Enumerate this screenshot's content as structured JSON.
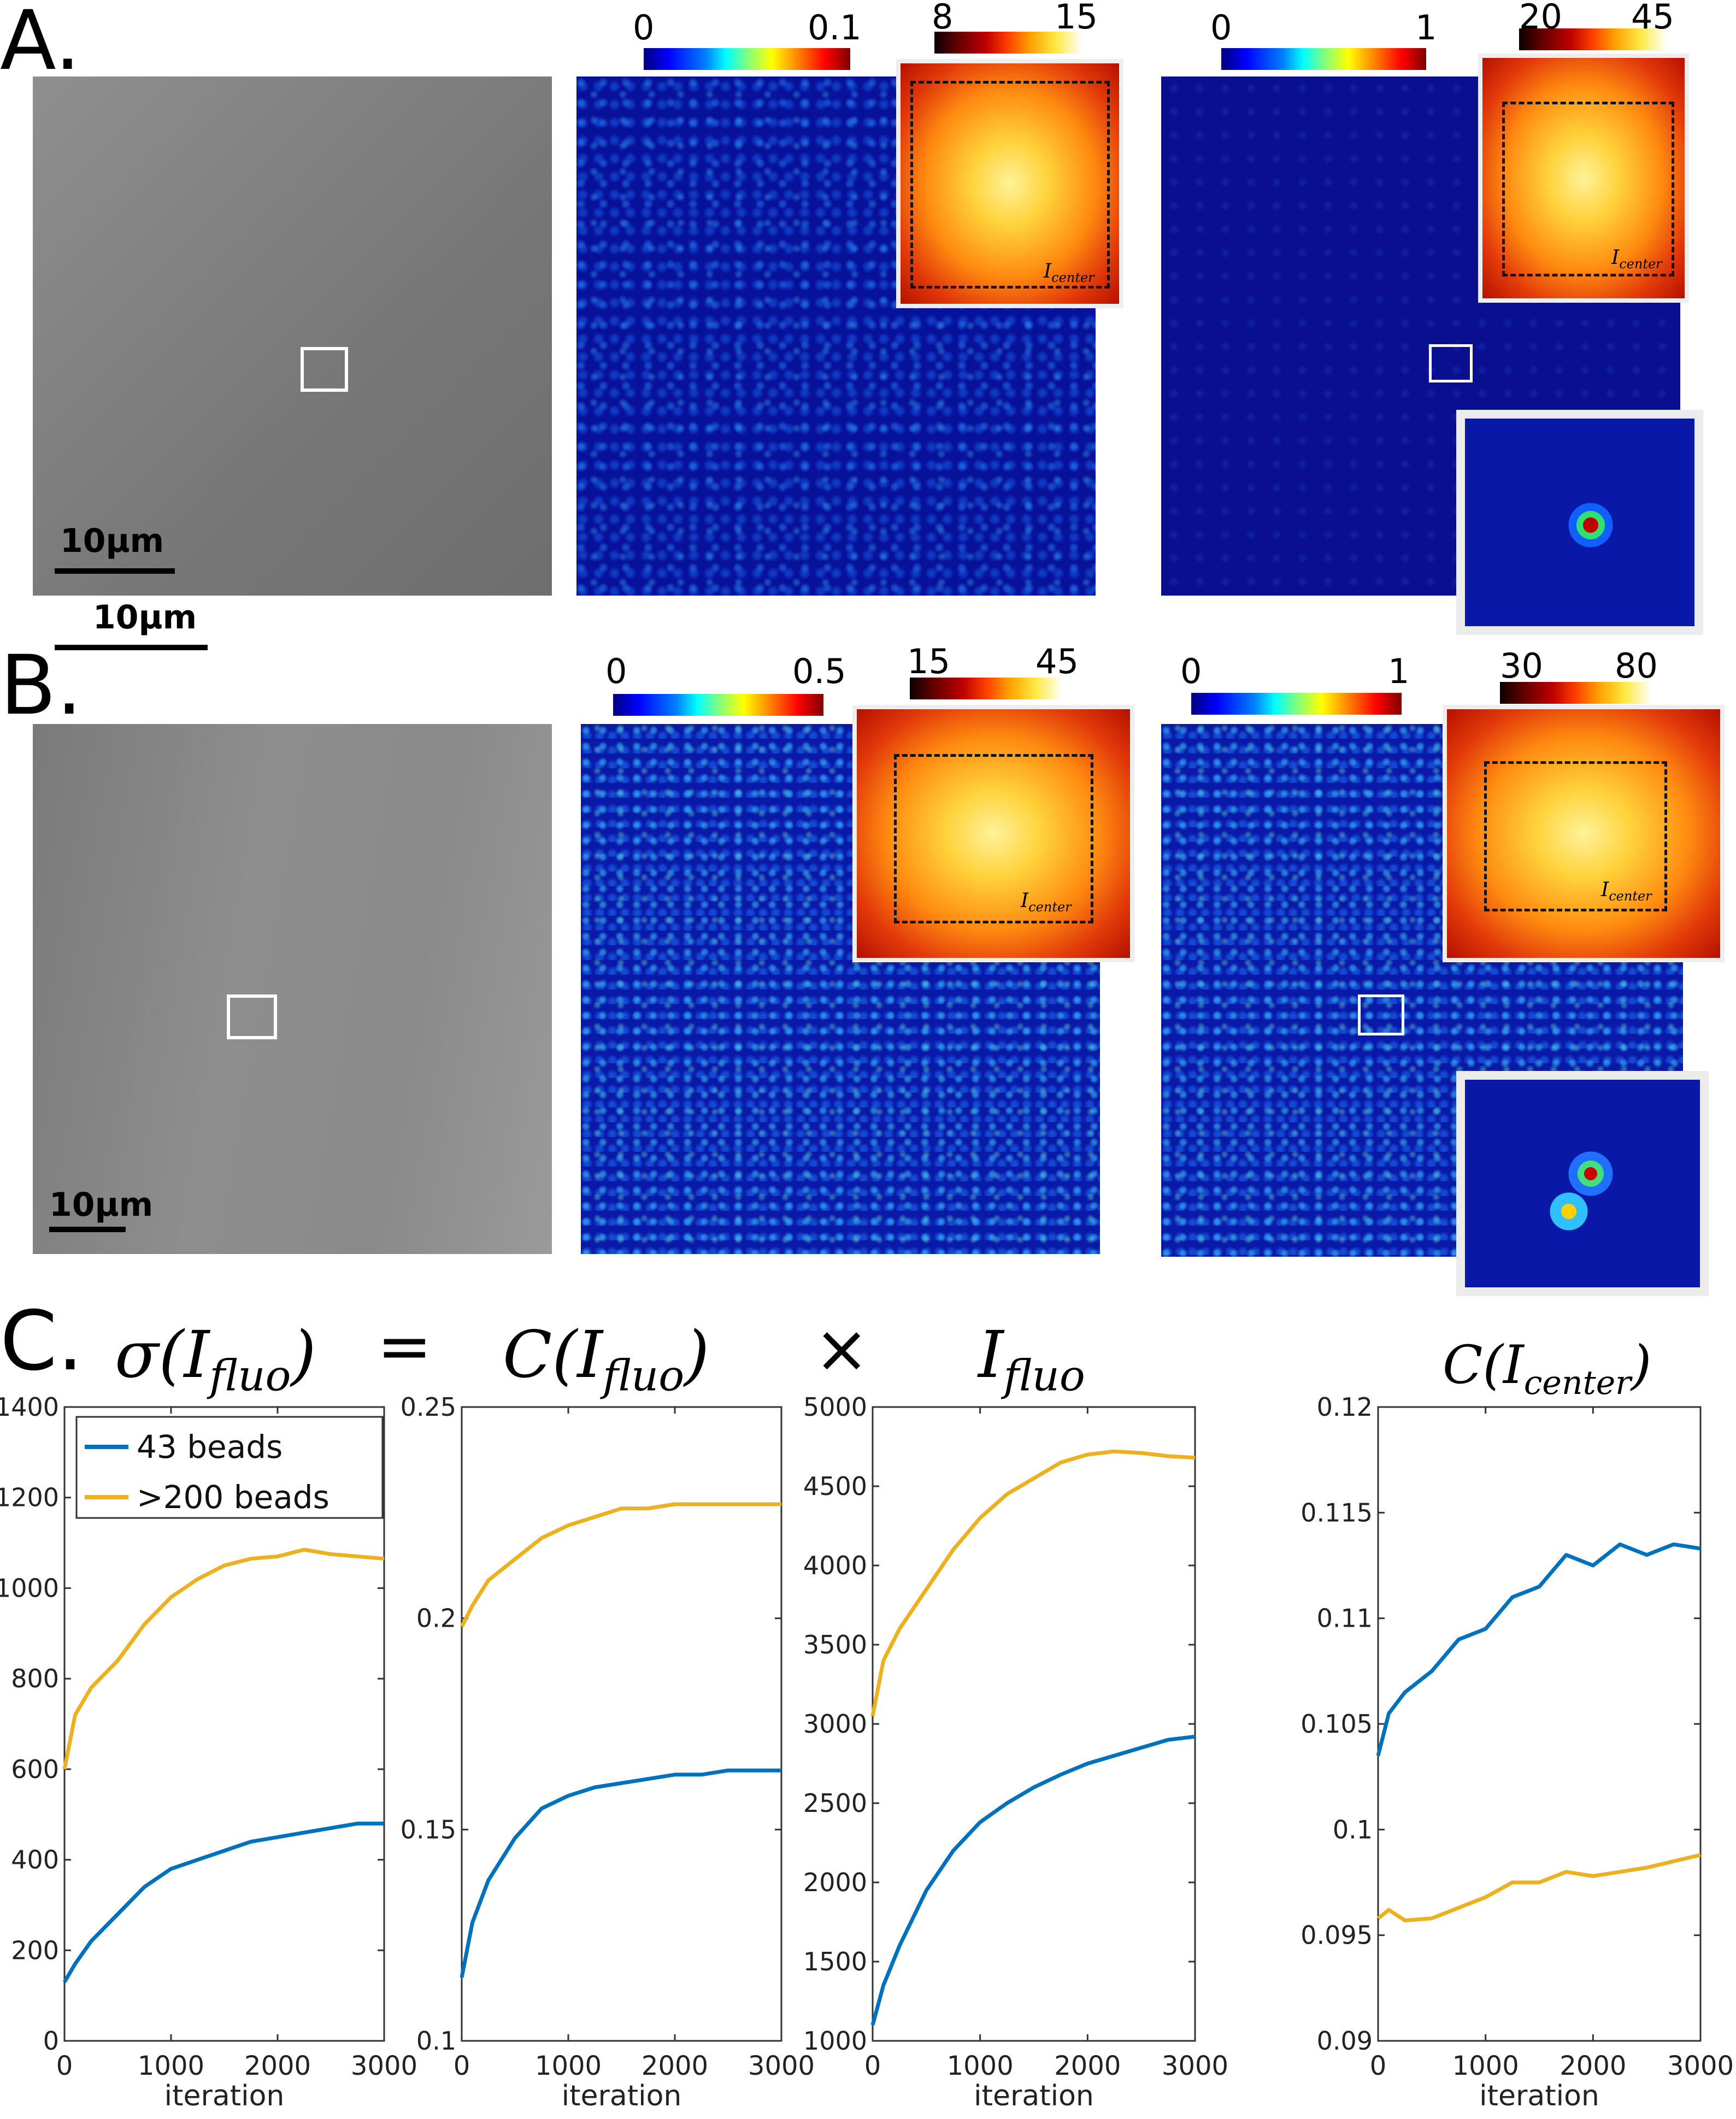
{
  "panels": {
    "A": "A.",
    "B": "B.",
    "C": "C."
  },
  "row_a": {
    "scale_bar": "10µm",
    "map1": {
      "cb_min": "0",
      "cb_max": "0.1",
      "inset_cb_min": "8",
      "inset_cb_max": "15",
      "inset_label": "I",
      "inset_label_sub": "center"
    },
    "map2": {
      "cb_min": "0",
      "cb_max": "1",
      "inset_cb_min": "20",
      "inset_cb_max": "45",
      "inset_label": "I",
      "inset_label_sub": "center"
    }
  },
  "row_b": {
    "scale_bar": "10µm",
    "map1": {
      "cb_min": "0",
      "cb_max": "0.5",
      "inset_cb_min": "15",
      "inset_cb_max": "45",
      "inset_label": "I",
      "inset_label_sub": "center"
    },
    "map2": {
      "cb_min": "0",
      "cb_max": "1",
      "inset_cb_min": "30",
      "inset_cb_max": "80",
      "inset_label": "I",
      "inset_label_sub": "center"
    }
  },
  "equation": {
    "sigma": "σ(I",
    "sigma_sub": "fluo",
    "equals": "=",
    "c": "C(I",
    "c_sub": "fluo",
    "times": "×",
    "i": "I",
    "i_sub": "fluo",
    "c_center": "C(I",
    "c_center_sub": "center"
  },
  "colors": {
    "blue": "#0072BD",
    "orange": "#EDB120"
  },
  "chart_data": [
    {
      "type": "line",
      "title": "σ(I_fluo)",
      "xlabel": "iteration",
      "ylabel": "",
      "xlim": [
        0,
        3000
      ],
      "ylim": [
        0,
        1400
      ],
      "xticks": [
        0,
        1000,
        2000,
        3000
      ],
      "yticks": [
        0,
        200,
        400,
        600,
        800,
        1000,
        1200,
        1400
      ],
      "legend": "top-left",
      "x": [
        0,
        100,
        250,
        500,
        750,
        1000,
        1250,
        1500,
        1750,
        2000,
        2250,
        2500,
        2750,
        3000
      ],
      "series": [
        {
          "name": "43 beads",
          "color": "#0072BD",
          "values": [
            130,
            170,
            220,
            280,
            340,
            380,
            400,
            420,
            440,
            450,
            460,
            470,
            480,
            480
          ]
        },
        {
          "name": ">200 beads",
          "color": "#EDB120",
          "values": [
            600,
            720,
            780,
            840,
            920,
            980,
            1020,
            1050,
            1065,
            1070,
            1085,
            1075,
            1070,
            1065
          ]
        }
      ]
    },
    {
      "type": "line",
      "title": "C(I_fluo)",
      "xlabel": "iteration",
      "ylabel": "",
      "xlim": [
        0,
        3000
      ],
      "ylim": [
        0.1,
        0.25
      ],
      "xticks": [
        0,
        1000,
        2000,
        3000
      ],
      "yticks": [
        0.1,
        0.15,
        0.2,
        0.25
      ],
      "x": [
        0,
        100,
        250,
        500,
        750,
        1000,
        1250,
        1500,
        1750,
        2000,
        2250,
        2500,
        2750,
        3000
      ],
      "series": [
        {
          "name": "43 beads",
          "color": "#0072BD",
          "values": [
            0.115,
            0.128,
            0.138,
            0.148,
            0.155,
            0.158,
            0.16,
            0.161,
            0.162,
            0.163,
            0.163,
            0.164,
            0.164,
            0.164
          ]
        },
        {
          "name": ">200 beads",
          "color": "#EDB120",
          "values": [
            0.198,
            0.203,
            0.209,
            0.214,
            0.219,
            0.222,
            0.224,
            0.226,
            0.226,
            0.227,
            0.227,
            0.227,
            0.227,
            0.227
          ]
        }
      ]
    },
    {
      "type": "line",
      "title": "I_fluo",
      "xlabel": "iteration",
      "ylabel": "",
      "xlim": [
        0,
        3000
      ],
      "ylim": [
        1000,
        5000
      ],
      "xticks": [
        0,
        1000,
        2000,
        3000
      ],
      "yticks": [
        1000,
        1500,
        2000,
        2500,
        3000,
        3500,
        4000,
        4500,
        5000
      ],
      "x": [
        0,
        100,
        250,
        500,
        750,
        1000,
        1250,
        1500,
        1750,
        2000,
        2250,
        2500,
        2750,
        3000
      ],
      "series": [
        {
          "name": "43 beads",
          "color": "#0072BD",
          "values": [
            1100,
            1350,
            1600,
            1950,
            2200,
            2380,
            2500,
            2600,
            2680,
            2750,
            2800,
            2850,
            2900,
            2920
          ]
        },
        {
          "name": ">200 beads",
          "color": "#EDB120",
          "values": [
            3050,
            3400,
            3600,
            3850,
            4100,
            4300,
            4450,
            4550,
            4650,
            4700,
            4720,
            4710,
            4690,
            4680
          ]
        }
      ]
    },
    {
      "type": "line",
      "title": "C(I_center)",
      "xlabel": "iteration",
      "ylabel": "",
      "xlim": [
        0,
        3000
      ],
      "ylim": [
        0.09,
        0.12
      ],
      "xticks": [
        0,
        1000,
        2000,
        3000
      ],
      "yticks": [
        0.09,
        0.095,
        0.1,
        0.105,
        0.11,
        0.115,
        0.12
      ],
      "x": [
        0,
        100,
        250,
        500,
        750,
        1000,
        1250,
        1500,
        1750,
        2000,
        2250,
        2500,
        2750,
        3000
      ],
      "series": [
        {
          "name": "43 beads",
          "color": "#0072BD",
          "values": [
            0.1035,
            0.1055,
            0.1065,
            0.1075,
            0.109,
            0.1095,
            0.111,
            0.1115,
            0.113,
            0.1125,
            0.1135,
            0.113,
            0.1135,
            0.1133
          ]
        },
        {
          "name": ">200 beads",
          "color": "#EDB120",
          "values": [
            0.0958,
            0.0962,
            0.0957,
            0.0958,
            0.0963,
            0.0968,
            0.0975,
            0.0975,
            0.098,
            0.0978,
            0.098,
            0.0982,
            0.0985,
            0.0988
          ]
        }
      ]
    }
  ]
}
